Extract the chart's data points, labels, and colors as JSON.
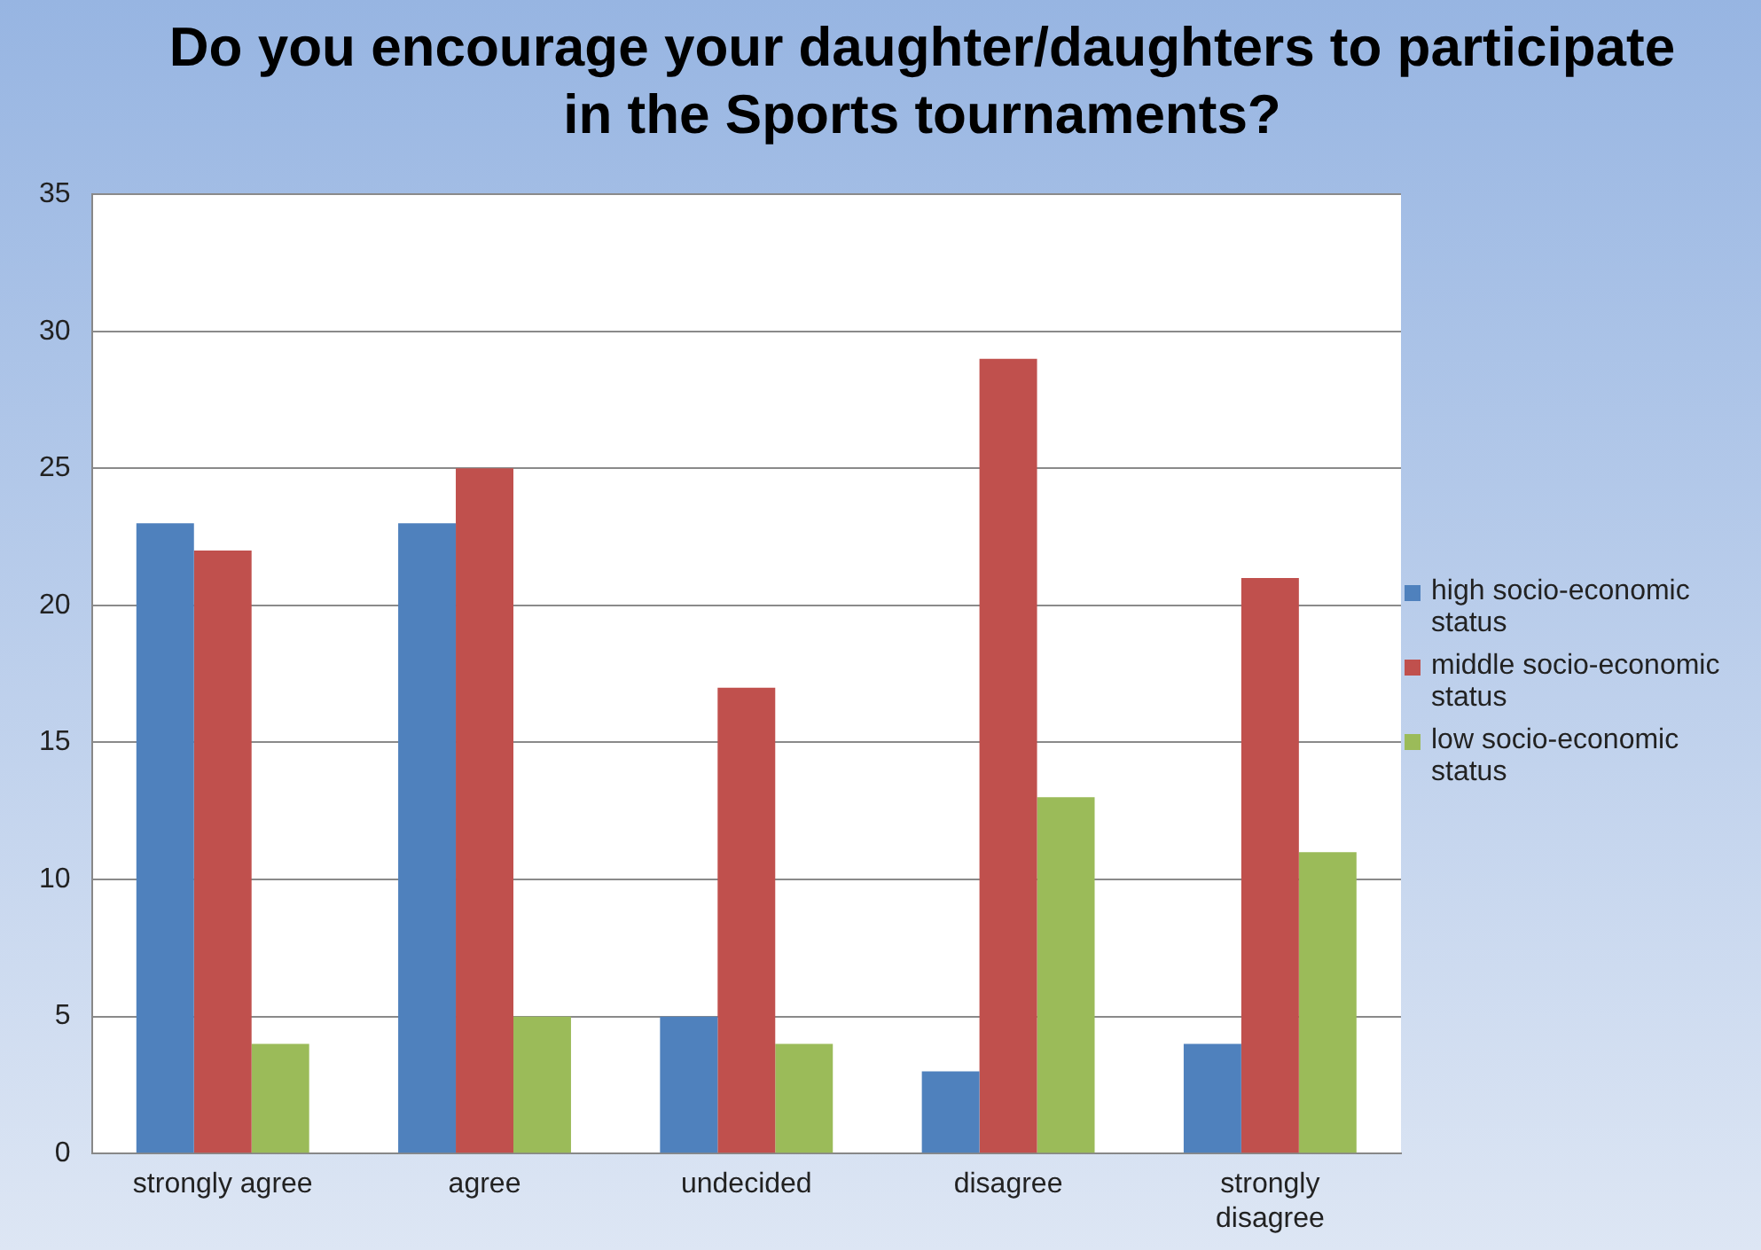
{
  "chart_data": {
    "type": "bar",
    "title": "Do you encourage your daughter/daughters to participate in the Sports tournaments?",
    "categories": [
      "strongly agree",
      "agree",
      "undecided",
      "disagree",
      "strongly disagree"
    ],
    "series": [
      {
        "name": "high socio-economic status",
        "color": "#4f81bd",
        "values": [
          23,
          23,
          5,
          3,
          4
        ]
      },
      {
        "name": "middle socio-economic status",
        "color": "#c0504d",
        "values": [
          22,
          25,
          17,
          29,
          21
        ]
      },
      {
        "name": "low socio-economic status",
        "color": "#9bbb59",
        "values": [
          4,
          5,
          4,
          13,
          11
        ]
      }
    ],
    "ylim": [
      0,
      35
    ],
    "yticks": [
      0,
      5,
      10,
      15,
      20,
      25,
      30,
      35
    ],
    "grid": "y",
    "legend": "right"
  }
}
